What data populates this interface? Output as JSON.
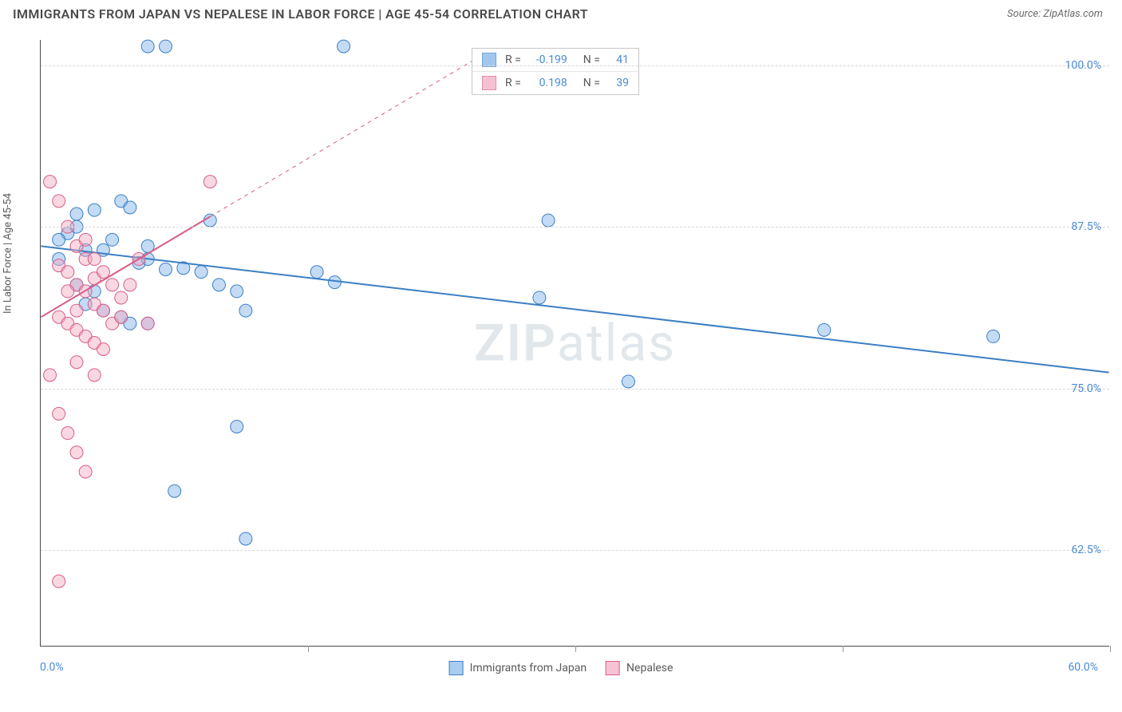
{
  "header": {
    "title": "IMMIGRANTS FROM JAPAN VS NEPALESE IN LABOR FORCE | AGE 45-54 CORRELATION CHART",
    "source": "Source: ZipAtlas.com"
  },
  "chart": {
    "type": "scatter",
    "y_axis_label": "In Labor Force | Age 45-54",
    "watermark": "ZIPatlas",
    "x_domain": [
      0,
      60
    ],
    "y_domain": [
      55,
      102
    ],
    "x_ticks": [
      0,
      15,
      30,
      45,
      60
    ],
    "x_tick_labels": {
      "min": "0.0%",
      "max": "60.0%"
    },
    "y_gridlines": [
      62.5,
      75.0,
      87.5,
      100.0
    ],
    "y_tick_labels": [
      "62.5%",
      "75.0%",
      "87.5%",
      "100.0%"
    ],
    "grid_color": "#d8d8d8",
    "axis_color": "#4a4a4a",
    "tick_label_color": "#4a8ad4",
    "background_color": "#ffffff",
    "marker_radius": 8,
    "marker_opacity": 0.45,
    "series": [
      {
        "name": "Immigrants from Japan",
        "fill": "#7bb0e8",
        "stroke": "#3b7fc4",
        "R": "-0.199",
        "N": "41",
        "trend": {
          "x1": 0,
          "y1": 86.0,
          "x2": 60,
          "y2": 76.2,
          "solid_until_x": 60,
          "dashed": false,
          "width": 2
        },
        "points": [
          [
            6.0,
            101.5
          ],
          [
            7.0,
            101.5
          ],
          [
            17.0,
            101.5
          ],
          [
            4.5,
            89.5
          ],
          [
            5.0,
            89.0
          ],
          [
            1.5,
            87.0
          ],
          [
            2.0,
            87.5
          ],
          [
            3.0,
            88.8
          ],
          [
            9.5,
            88.0
          ],
          [
            28.5,
            88.0
          ],
          [
            1.0,
            85.0
          ],
          [
            2.5,
            85.7
          ],
          [
            3.5,
            85.7
          ],
          [
            5.5,
            84.7
          ],
          [
            6.0,
            85.0
          ],
          [
            7.0,
            84.2
          ],
          [
            8.0,
            84.3
          ],
          [
            9.0,
            84.0
          ],
          [
            10.0,
            83.0
          ],
          [
            11.0,
            82.5
          ],
          [
            15.5,
            84.0
          ],
          [
            16.5,
            83.2
          ],
          [
            33.0,
            75.5
          ],
          [
            2.5,
            81.5
          ],
          [
            3.5,
            81.0
          ],
          [
            4.5,
            80.5
          ],
          [
            5.0,
            80.0
          ],
          [
            6.0,
            80.0
          ],
          [
            11.5,
            81.0
          ],
          [
            44.0,
            79.5
          ],
          [
            53.5,
            79.0
          ],
          [
            11.0,
            72.0
          ],
          [
            11.5,
            63.3
          ],
          [
            7.5,
            67.0
          ],
          [
            2.0,
            83.0
          ],
          [
            3.0,
            82.5
          ],
          [
            1.0,
            86.5
          ],
          [
            4.0,
            86.5
          ],
          [
            2.0,
            88.5
          ],
          [
            6.0,
            86.0
          ],
          [
            28.0,
            82.0
          ]
        ]
      },
      {
        "name": "Nepalese",
        "fill": "#f2a8bf",
        "stroke": "#d85d86",
        "R": "0.198",
        "N": "39",
        "trend": {
          "x1": 0,
          "y1": 80.5,
          "x2": 25,
          "y2": 101.0,
          "solid_until_x": 9.5,
          "dashed": true,
          "width": 2
        },
        "points": [
          [
            0.5,
            91.0
          ],
          [
            1.0,
            89.5
          ],
          [
            1.5,
            87.5
          ],
          [
            2.0,
            86.0
          ],
          [
            2.5,
            85.0
          ],
          [
            3.0,
            83.5
          ],
          [
            1.0,
            84.5
          ],
          [
            1.5,
            84.0
          ],
          [
            2.0,
            83.0
          ],
          [
            2.5,
            82.5
          ],
          [
            3.0,
            81.5
          ],
          [
            3.5,
            81.0
          ],
          [
            1.0,
            80.5
          ],
          [
            1.5,
            80.0
          ],
          [
            2.0,
            79.5
          ],
          [
            2.5,
            79.0
          ],
          [
            3.0,
            78.5
          ],
          [
            3.5,
            78.0
          ],
          [
            4.0,
            80.0
          ],
          [
            4.5,
            82.0
          ],
          [
            5.0,
            83.0
          ],
          [
            5.5,
            85.0
          ],
          [
            6.0,
            80.0
          ],
          [
            0.5,
            76.0
          ],
          [
            1.0,
            73.0
          ],
          [
            1.5,
            71.5
          ],
          [
            2.0,
            70.0
          ],
          [
            2.5,
            68.5
          ],
          [
            1.0,
            60.0
          ],
          [
            2.5,
            86.5
          ],
          [
            3.0,
            85.0
          ],
          [
            3.5,
            84.0
          ],
          [
            4.0,
            83.0
          ],
          [
            9.5,
            91.0
          ],
          [
            2.0,
            77.0
          ],
          [
            3.0,
            76.0
          ],
          [
            1.5,
            82.5
          ],
          [
            2.0,
            81.0
          ],
          [
            4.5,
            80.5
          ]
        ]
      }
    ],
    "legend_bottom": [
      {
        "label": "Immigrants from Japan",
        "fill": "#a8cdf0",
        "stroke": "#3b7fc4"
      },
      {
        "label": "Nepalese",
        "fill": "#f6c3d4",
        "stroke": "#d85d86"
      }
    ]
  }
}
